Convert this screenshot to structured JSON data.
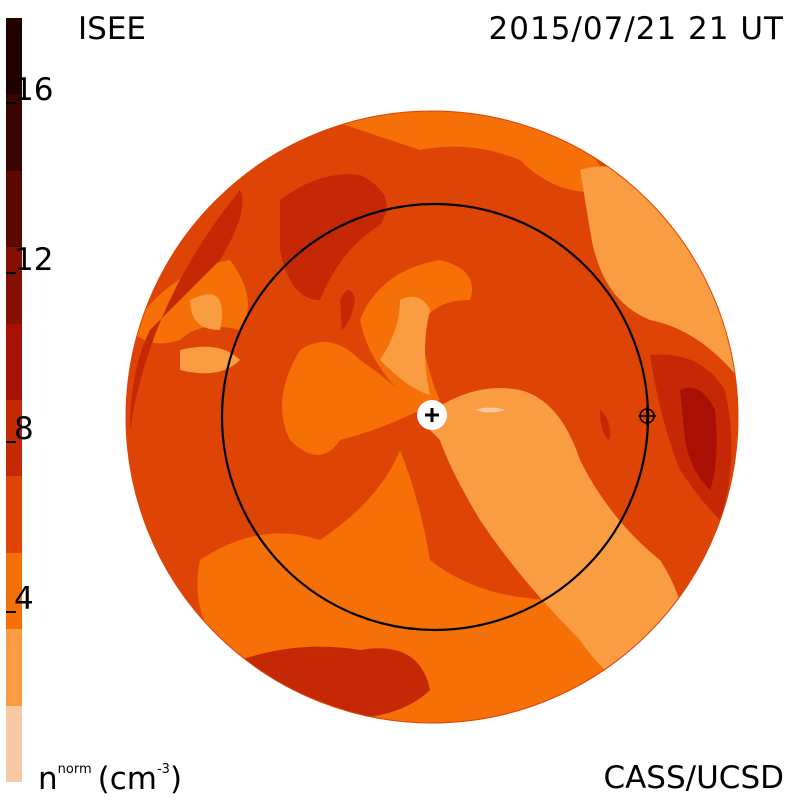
{
  "header": {
    "observatory": "ISEE",
    "datetime": "2015/07/21 21 UT"
  },
  "footer": {
    "quantity": "n",
    "quantity_sup": "norm",
    "unit": "(cm",
    "unit_sup": "-3",
    "unit_close": ")",
    "credit": "CASS/UCSD"
  },
  "colorbar": {
    "levels": [
      "#f9c9a4",
      "#fa9c42",
      "#f57006",
      "#dd4405",
      "#c52805",
      "#a91004",
      "#851003",
      "#5b0a02",
      "#3a0500",
      "#210000"
    ],
    "ticks": [
      {
        "label": "4",
        "value": 4
      },
      {
        "label": "8",
        "value": 8
      },
      {
        "label": "12",
        "value": 12
      },
      {
        "label": "16",
        "value": 16
      }
    ],
    "range": [
      0,
      18
    ]
  },
  "map": {
    "description_colors": {
      "background": "#dd4405",
      "orbit_ring": "#000000"
    },
    "markers": [
      {
        "name": "sun-marker",
        "symbol": "+"
      },
      {
        "name": "earth-marker",
        "symbol": "⊕"
      }
    ]
  }
}
